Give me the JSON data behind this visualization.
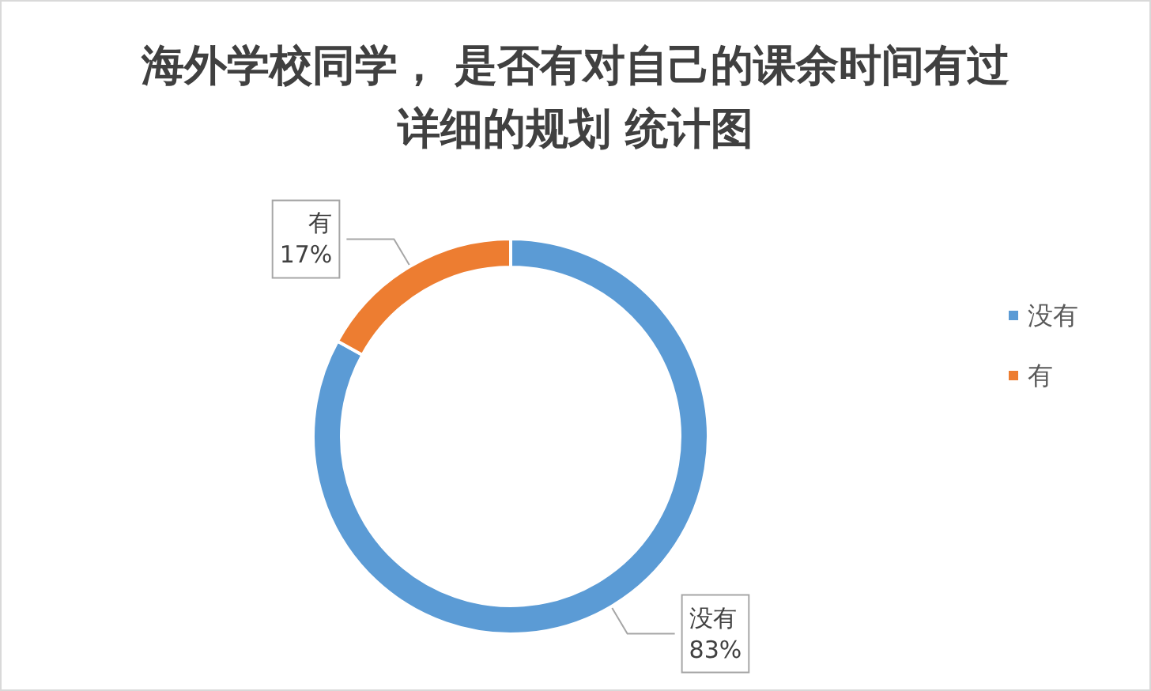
{
  "chart_data": {
    "type": "donut",
    "title": "海外学校同学， 是否有对自己的课余时间有过详细的规划 统计图",
    "categories": [
      "没有",
      "有"
    ],
    "values": [
      83,
      17
    ],
    "colors": [
      "#5b9bd5",
      "#ed7d31"
    ],
    "legend": "right",
    "value_labels": [
      "83%",
      "17%"
    ]
  }
}
